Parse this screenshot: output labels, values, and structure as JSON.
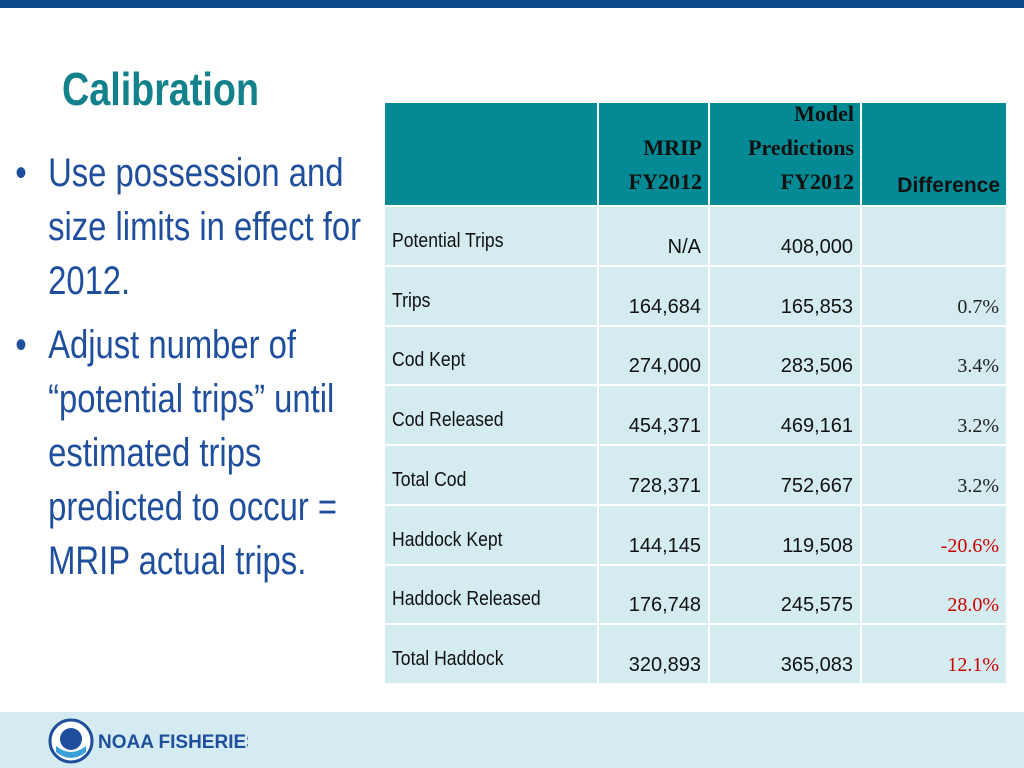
{
  "header": {
    "title": "Calibration"
  },
  "bullets": [
    "Use possession and size limits in effect for 2012.",
    "Adjust number of “potential trips” until estimated trips predicted to occur = MRIP actual trips."
  ],
  "table": {
    "columns": [
      [],
      [
        "MRIP",
        "FY2012"
      ],
      [
        "Model",
        "Predictions",
        "FY2012"
      ],
      [
        "Difference"
      ]
    ],
    "rows": [
      {
        "label": "Potential Trips",
        "mrip": "N/A",
        "model": "408,000",
        "difference": "",
        "color": "#222222"
      },
      {
        "label": "Trips",
        "mrip": "164,684",
        "model": "165,853",
        "difference": "0.7%",
        "color": "#222222"
      },
      {
        "label": "Cod Kept",
        "mrip": "274,000",
        "model": "283,506",
        "difference": "3.4%",
        "color": "#222222"
      },
      {
        "label": "Cod Released",
        "mrip": "454,371",
        "model": "469,161",
        "difference": "3.2%",
        "color": "#222222"
      },
      {
        "label": "Total Cod",
        "mrip": "728,371",
        "model": "752,667",
        "difference": "3.2%",
        "color": "#222222"
      },
      {
        "label": "Haddock Kept",
        "mrip": "144,145",
        "model": "119,508",
        "difference": "-20.6%",
        "color": "#cc0000"
      },
      {
        "label": "Haddock Released",
        "mrip": "176,748",
        "model": "245,575",
        "difference": "28.0%",
        "color": "#cc0000"
      },
      {
        "label": "Total Haddock",
        "mrip": "320,893",
        "model": "365,083",
        "difference": "12.1%",
        "color": "#cc0000"
      }
    ]
  },
  "footer": {
    "logo": "NOAA FISHERIES"
  }
}
